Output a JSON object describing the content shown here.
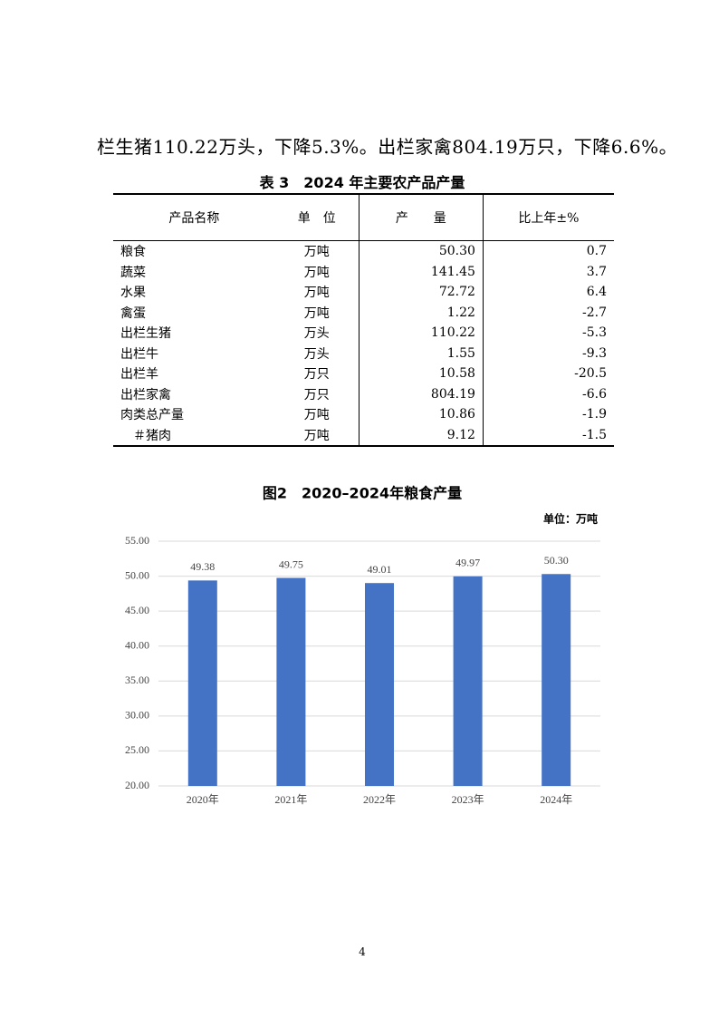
{
  "paragraph": "栏生猪110.22万头，下降5.3%。出栏家禽804.19万只，下降6.6%。",
  "table": {
    "title": "表 3　2024 年主要农产品产量",
    "header": [
      "产品名称",
      "单　位",
      "产　　量",
      "比上年±%"
    ],
    "rows": [
      [
        "粮食",
        "万吨",
        "50.30",
        "0.7"
      ],
      [
        "蔬菜",
        "万吨",
        "141.45",
        "3.7"
      ],
      [
        "水果",
        "万吨",
        "72.72",
        "6.4"
      ],
      [
        "禽蛋",
        "万吨",
        "1.22",
        "-2.7"
      ],
      [
        "出栏生猪",
        "万头",
        "110.22",
        "-5.3"
      ],
      [
        "出栏牛",
        "万头",
        "1.55",
        "-9.3"
      ],
      [
        "出栏羊",
        "万只",
        "10.58",
        "-20.5"
      ],
      [
        "出栏家禽",
        "万只",
        "804.19",
        "-6.6"
      ],
      [
        "肉类总产量",
        "万吨",
        "10.86",
        "-1.9"
      ],
      [
        "＃猪肉",
        "万吨",
        "9.12",
        "-1.5"
      ]
    ]
  },
  "chart_data": {
    "type": "bar",
    "title": "图2　2020–2024年粮食产量",
    "unit": "单位：万吨",
    "categories": [
      "2020年",
      "2021年",
      "2022年",
      "2023年",
      "2024年"
    ],
    "values": [
      49.38,
      49.75,
      49.01,
      49.97,
      50.3
    ],
    "value_labels": [
      "49.38",
      "49.75",
      "49.01",
      "49.97",
      "50.30"
    ],
    "color": "#4472c4",
    "ylim": [
      20,
      55
    ],
    "yticks": [
      {
        "value": 20,
        "label": "20.00"
      },
      {
        "value": 25,
        "label": "25.00"
      },
      {
        "value": 30,
        "label": "30.00"
      },
      {
        "value": 35,
        "label": "35.00"
      },
      {
        "value": 40,
        "label": "40.00"
      },
      {
        "value": 45,
        "label": "45.00"
      },
      {
        "value": 50,
        "label": "50.00"
      },
      {
        "value": 55,
        "label": "55.00"
      }
    ],
    "grid": true
  },
  "page_number": "4"
}
